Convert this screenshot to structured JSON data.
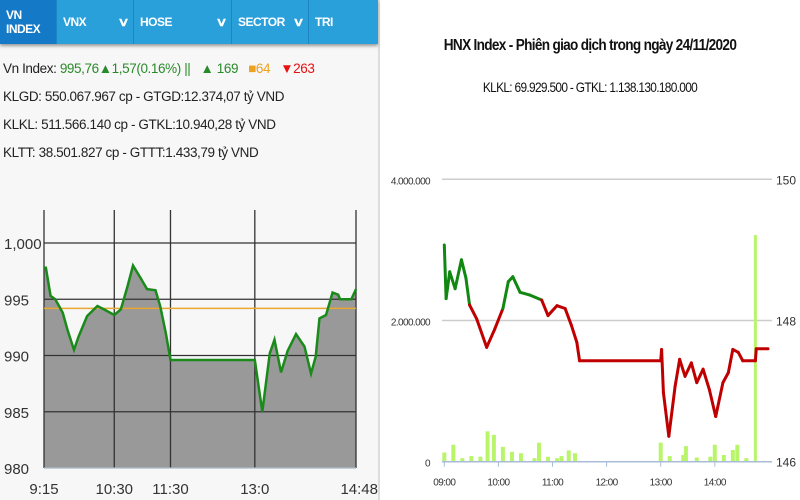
{
  "nav": {
    "tabs": [
      {
        "label": "VN INDEX",
        "dropdown": false,
        "active": true
      },
      {
        "label": "VNX",
        "dropdown": true
      },
      {
        "label": "HOSE",
        "dropdown": true
      },
      {
        "label": "SECTOR",
        "dropdown": true
      },
      {
        "label": "TRI",
        "dropdown": false
      }
    ]
  },
  "summary": {
    "index_label": "Vn Index:",
    "index_value": "995,76",
    "change": "▲1,57(0.16%)",
    "separator": "||",
    "advances": "▲ 169",
    "unchanged": "■64",
    "declines": "▼263",
    "line2": "KLGD: 550.067.967 cp - GTGD:12.374,07 tỷ VND",
    "line3": "KLKL: 511.566.140 cp - GTKL:10.940,28 tỷ VND",
    "line4": "KLTT: 38.501.827 cp - GTTT:1.433,79 tỷ VND"
  },
  "colors": {
    "nav": "#2aa0db",
    "nav_active": "#1479c6",
    "up": "#2a8a2a",
    "down": "#c00000",
    "unchanged": "#f0a020",
    "volume": "#b8f56a",
    "reference": "#e8a830",
    "area": "#999999"
  },
  "chart_data": [
    {
      "type": "area",
      "xlabel": "",
      "ylabel": "",
      "ylim": [
        980,
        1003
      ],
      "yticks": [
        "980",
        "985",
        "990",
        "995",
        "1,000"
      ],
      "ytick_values": [
        980,
        985,
        990,
        995,
        1000
      ],
      "xticks": [
        "9:15",
        "10:30",
        "11:30",
        "13:0",
        "14:48"
      ],
      "xtick_times": [
        "09:15",
        "10:30",
        "11:30",
        "13:00",
        "14:48"
      ],
      "reference": 994.19,
      "grid": true,
      "series": [
        {
          "x": [
            "09:15",
            "09:17",
            "09:22",
            "09:27",
            "09:35",
            "09:40",
            "09:47",
            "09:52",
            "10:01",
            "10:12",
            "10:19",
            "10:30",
            "10:37",
            "10:44",
            "10:50",
            "10:58",
            "11:05",
            "11:14",
            "11:19",
            "11:25",
            "11:30",
            "13:00",
            "13:08",
            "13:16",
            "13:21",
            "13:28",
            "13:35",
            "13:44",
            "13:53",
            "14:00",
            "14:05",
            "14:09",
            "14:16",
            "14:23",
            "14:29",
            "14:31",
            "14:43",
            "14:48"
          ],
          "y": [
            997.8,
            997.8,
            995.3,
            995.0,
            993.8,
            992.3,
            990.5,
            991.7,
            993.5,
            994.4,
            994.1,
            993.6,
            994.1,
            996.1,
            998.0,
            996.9,
            995.9,
            995.8,
            994.4,
            992.0,
            989.6,
            989.6,
            985.0,
            990.2,
            991.4,
            988.5,
            990.4,
            991.9,
            990.8,
            988.4,
            989.9,
            993.3,
            993.6,
            995.6,
            995.4,
            995.0,
            995.0,
            995.9
          ]
        }
      ]
    },
    {
      "type": "line",
      "title": "HNX Index - Phiên giao dịch trong ngày 24/11/2020",
      "subtitle": "KLKL: 69.929.500 - GTKL: 1.138.130.180.000",
      "xticks": [
        "09:00",
        "10:00",
        "11:00",
        "12:00",
        "13:00",
        "14:00"
      ],
      "yticks_left": [
        "0",
        "2.000.000",
        "4.000.000"
      ],
      "ylim_left": [
        0,
        4000000
      ],
      "yticks_right": [
        "146",
        "148",
        "150"
      ],
      "ylim_right": [
        146,
        150
      ],
      "reference": 148.21,
      "grid": true,
      "price": {
        "x": [
          "09:00",
          "09:02",
          "09:06",
          "09:12",
          "09:19",
          "09:24",
          "09:28",
          "09:36",
          "09:47",
          "09:56",
          "10:05",
          "10:11",
          "10:16",
          "10:24",
          "10:35",
          "10:48",
          "10:55",
          "11:05",
          "11:14",
          "11:21",
          "11:27",
          "11:30",
          "13:00",
          "13:01",
          "13:03",
          "13:09",
          "13:16",
          "13:21",
          "13:27",
          "13:34",
          "13:40",
          "13:47",
          "13:54",
          "14:01",
          "14:09",
          "14:15",
          "14:20",
          "14:26",
          "14:31",
          "14:45",
          "14:46",
          "14:59"
        ],
        "y": [
          149.07,
          148.31,
          148.69,
          148.45,
          148.86,
          148.6,
          148.22,
          148.02,
          147.62,
          147.88,
          148.17,
          148.55,
          148.62,
          148.4,
          148.36,
          148.29,
          148.07,
          148.21,
          148.17,
          147.93,
          147.69,
          147.43,
          147.43,
          147.59,
          146.98,
          146.36,
          147.07,
          147.45,
          147.21,
          147.4,
          147.12,
          147.31,
          147.02,
          146.64,
          147.12,
          147.26,
          147.59,
          147.55,
          147.43,
          147.43,
          147.6,
          147.6
        ]
      },
      "volume": {
        "x": [
          "09:00",
          "09:10",
          "09:20",
          "09:30",
          "09:40",
          "09:48",
          "09:55",
          "10:05",
          "10:15",
          "10:25",
          "10:40",
          "10:45",
          "10:55",
          "11:05",
          "11:10",
          "11:18",
          "11:25",
          "13:00",
          "13:10",
          "13:25",
          "13:28",
          "13:40",
          "13:55",
          "14:00",
          "14:10",
          "14:20",
          "14:25",
          "14:35",
          "14:45"
        ],
        "y": [
          130000,
          240000,
          50000,
          80000,
          70000,
          430000,
          380000,
          210000,
          140000,
          120000,
          50000,
          270000,
          70000,
          50000,
          80000,
          160000,
          120000,
          270000,
          80000,
          95000,
          220000,
          60000,
          70000,
          240000,
          95000,
          165000,
          240000,
          50000,
          3210000
        ]
      }
    }
  ]
}
